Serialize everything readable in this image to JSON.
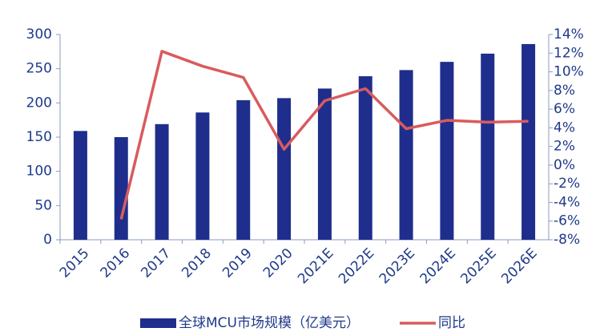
{
  "chart_data": {
    "type": "bar-line",
    "categories": [
      "2015",
      "2016",
      "2017",
      "2018",
      "2019",
      "2020",
      "2021E",
      "2022E",
      "2023E",
      "2024E",
      "2025E",
      "2026E"
    ],
    "series": [
      {
        "name": "全球MCU市场规模（亿美元）",
        "type": "bar",
        "color": "#1f2e8c",
        "values": [
          159,
          150,
          169,
          186,
          204,
          207,
          221,
          239,
          248,
          260,
          272,
          286
        ]
      },
      {
        "name": "同比",
        "type": "line",
        "axis": "y2",
        "color": "#d95b5e",
        "values": [
          null,
          -5.8,
          12.2,
          10.6,
          9.4,
          1.7,
          6.9,
          8.2,
          3.9,
          4.8,
          4.6,
          4.7
        ]
      }
    ],
    "ylim": [
      0,
      300
    ],
    "yticks": [
      0,
      50,
      100,
      150,
      200,
      250,
      300
    ],
    "y2lim": [
      -8,
      14
    ],
    "y2ticks": [
      {
        "value": -8,
        "label": "-8%"
      },
      {
        "value": -6,
        "label": "-6%"
      },
      {
        "value": -4,
        "label": "-4%"
      },
      {
        "value": -2,
        "label": "-2%"
      },
      {
        "value": 0,
        "label": "0%"
      },
      {
        "value": 2,
        "label": "2%"
      },
      {
        "value": 4,
        "label": "4%"
      },
      {
        "value": 6,
        "label": "6%"
      },
      {
        "value": 8,
        "label": "8%"
      },
      {
        "value": 10,
        "label": "10%"
      },
      {
        "value": 12,
        "label": "12%"
      },
      {
        "value": 14,
        "label": "14%"
      }
    ],
    "grid": false,
    "legend": "bottom"
  }
}
